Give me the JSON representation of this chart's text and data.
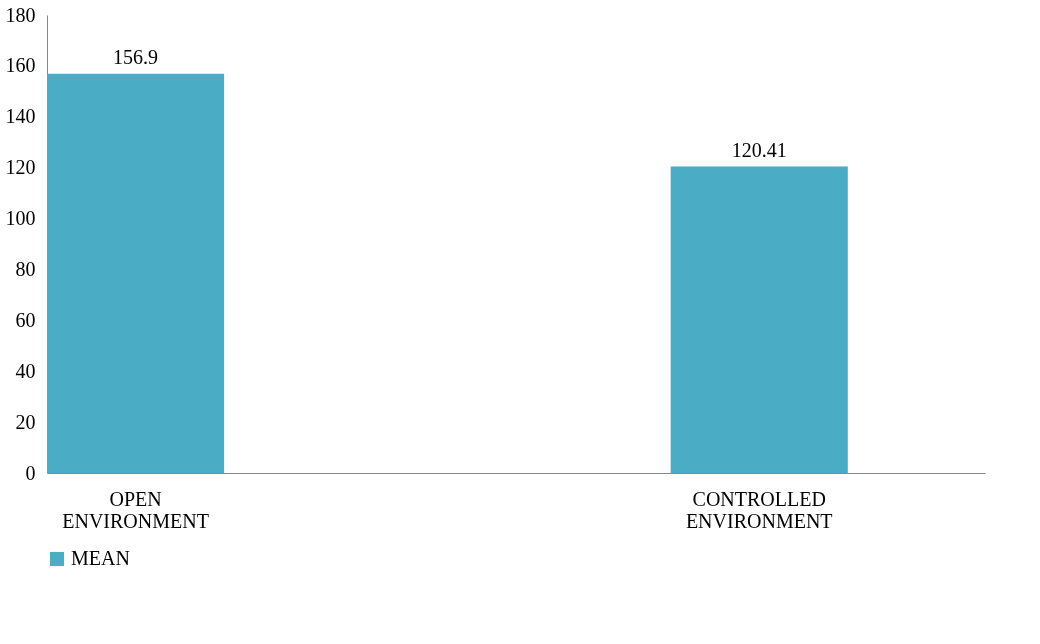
{
  "chart_data": {
    "type": "bar",
    "categories": [
      "OPEN ENVIRONMENT",
      "CONTROLLED ENVIRONMENT"
    ],
    "series": [
      {
        "name": "MEAN",
        "color": "#4bacc6",
        "values": [
          156.9,
          120.41
        ]
      }
    ],
    "ylim": [
      0,
      180
    ],
    "yticks": [
      0,
      20,
      40,
      60,
      80,
      100,
      120,
      140,
      160,
      180
    ],
    "grid": false,
    "legend": "bottom",
    "data_labels": true
  }
}
